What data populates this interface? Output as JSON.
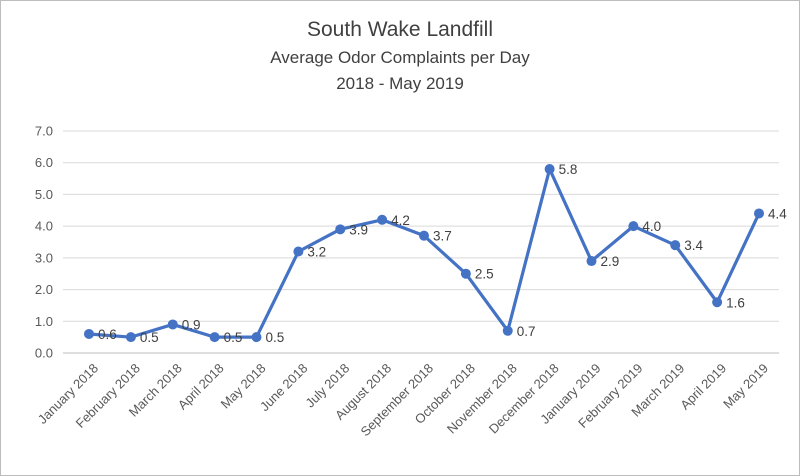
{
  "chart_data": {
    "type": "line",
    "title": "South Wake Landfill",
    "subtitle": "Average Odor Complaints per Day",
    "period": "2018 - May 2019",
    "xlabel": "",
    "ylabel": "",
    "categories": [
      "January 2018",
      "February 2018",
      "March 2018",
      "April 2018",
      "May 2018",
      "June 2018",
      "July 2018",
      "August 2018",
      "September 2018",
      "October 2018",
      "November 2018",
      "December 2018",
      "January 2019",
      "February 2019",
      "March 2019",
      "April 2019",
      "May 2019"
    ],
    "values": [
      0.6,
      0.5,
      0.9,
      0.5,
      0.5,
      3.2,
      3.9,
      4.2,
      3.7,
      2.5,
      0.7,
      5.8,
      2.9,
      4.0,
      3.4,
      1.6,
      4.4
    ],
    "ylim": [
      0,
      7
    ],
    "ytick_step": 1,
    "ytick_labels": [
      "0.0",
      "1.0",
      "2.0",
      "3.0",
      "4.0",
      "5.0",
      "6.0",
      "7.0"
    ],
    "grid": true,
    "legend": "none",
    "line_color": "#4472C4",
    "marker_color": "#4472C4",
    "label_color": "#404040",
    "axis_color": "#595959",
    "grid_color": "#D9D9D9",
    "axis_line_color": "#BFBFBF"
  }
}
